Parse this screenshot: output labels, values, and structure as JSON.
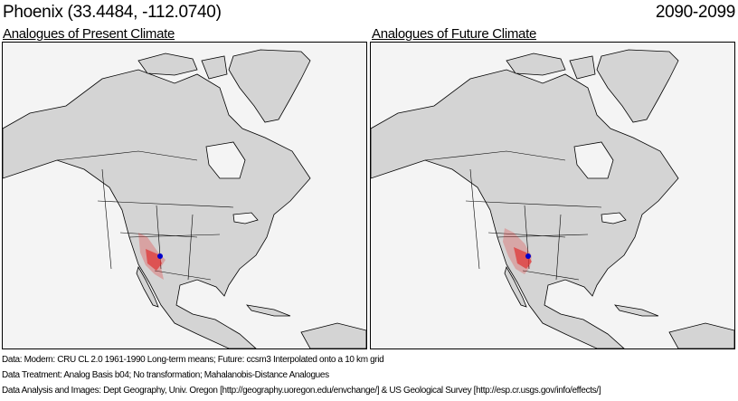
{
  "header": {
    "location": "Phoenix  (33.4484, -112.0740)",
    "period": "2090-2099"
  },
  "panels": [
    {
      "title": "Analogues of Present Climate"
    },
    {
      "title": "Analogues of Future Climate"
    }
  ],
  "map": {
    "land_color": "#d4d4d4",
    "water_color": "#f4f4f4",
    "analogue_color": "#e03030",
    "site_color": "#0000cc"
  },
  "notes": [
    "Data:  Modern: CRU CL 2.0 1961-1990 Long-term means; Future: ccsm3 Interpolated onto a 10 km grid",
    "Data Treatment:  Analog Basis b04; No transformation; Mahalanobis-Distance Analogues",
    "Data Analysis and Images:  Dept Geography, Univ. Oregon [http://geography.uoregon.edu/envchange/] & US Geological Survey [http://esp.cr.usgs.gov/info/effects/]"
  ]
}
